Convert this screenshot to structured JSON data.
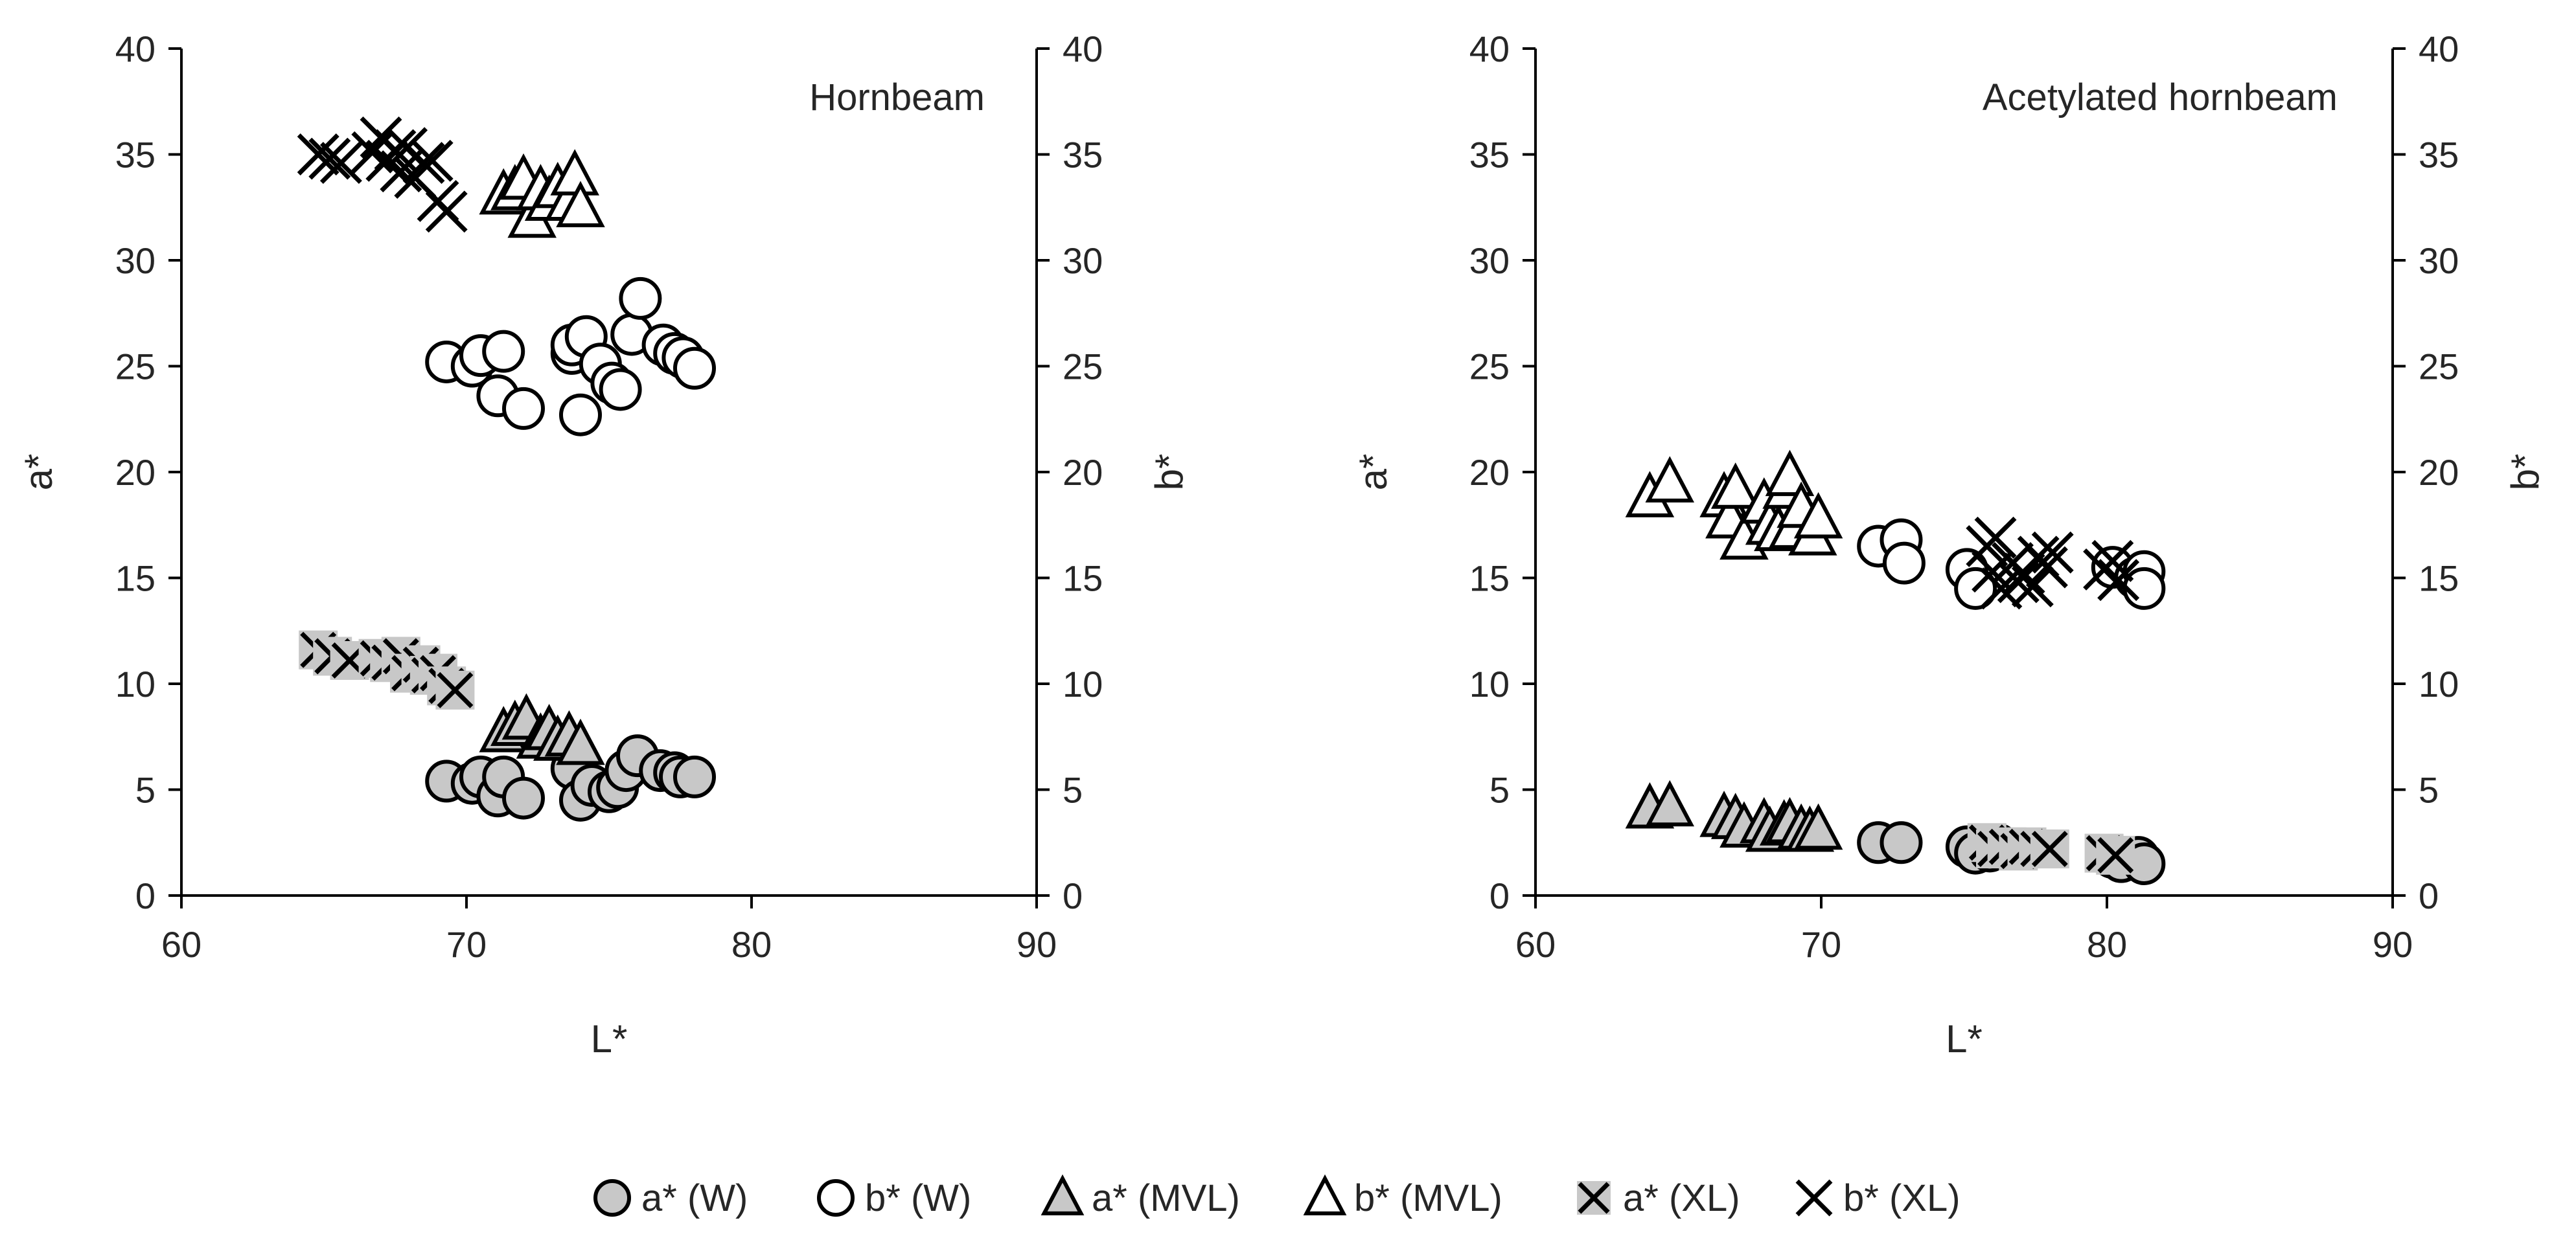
{
  "chart_data": [
    {
      "type": "scatter",
      "title": "Hornbeam",
      "xlabel": "L*",
      "ylabel": "a*",
      "y2label": "b*",
      "xlim": [
        60,
        90
      ],
      "ylim": [
        0,
        40
      ],
      "y2lim": [
        0,
        40
      ],
      "xticks": [
        "60",
        "70",
        "80",
        "90"
      ],
      "yticks": [
        "0",
        "5",
        "10",
        "15",
        "20",
        "25",
        "30",
        "35",
        "40"
      ],
      "y2ticks": [
        "0",
        "5",
        "10",
        "15",
        "20",
        "25",
        "30",
        "35",
        "40"
      ],
      "grid": false,
      "series": [
        {
          "name": "a* (W)",
          "marker": "circle",
          "fill": "#c8c8c8",
          "points": [
            [
              69.3,
              5.4
            ],
            [
              70.2,
              5.3
            ],
            [
              70.5,
              5.6
            ],
            [
              71.1,
              4.7
            ],
            [
              71.3,
              5.6
            ],
            [
              72.0,
              4.6
            ],
            [
              73.7,
              6.0
            ],
            [
              74.0,
              4.5
            ],
            [
              74.4,
              5.2
            ],
            [
              75.0,
              4.9
            ],
            [
              75.3,
              5.1
            ],
            [
              75.6,
              5.9
            ],
            [
              76.0,
              6.6
            ],
            [
              76.8,
              5.9
            ],
            [
              77.3,
              5.8
            ],
            [
              77.5,
              5.6
            ],
            [
              78.0,
              5.6
            ]
          ]
        },
        {
          "name": "b* (W)",
          "marker": "circle",
          "fill": "#ffffff",
          "points": [
            [
              69.3,
              25.2
            ],
            [
              70.2,
              25.0
            ],
            [
              70.5,
              25.5
            ],
            [
              71.1,
              23.6
            ],
            [
              71.3,
              25.7
            ],
            [
              72.0,
              23.0
            ],
            [
              73.7,
              25.6
            ],
            [
              73.7,
              26.0
            ],
            [
              74.0,
              22.7
            ],
            [
              74.2,
              26.4
            ],
            [
              74.7,
              25.1
            ],
            [
              75.1,
              24.2
            ],
            [
              75.4,
              23.9
            ],
            [
              75.8,
              26.5
            ],
            [
              76.1,
              28.2
            ],
            [
              76.9,
              26.0
            ],
            [
              77.3,
              25.6
            ],
            [
              77.6,
              25.4
            ],
            [
              78.0,
              24.9
            ]
          ]
        },
        {
          "name": "a* (MVL)",
          "marker": "triangle",
          "fill": "#c8c8c8",
          "points": [
            [
              71.3,
              7.7
            ],
            [
              71.7,
              8.0
            ],
            [
              72.1,
              8.3
            ],
            [
              72.6,
              7.4
            ],
            [
              72.9,
              7.8
            ],
            [
              73.2,
              7.3
            ],
            [
              73.6,
              7.5
            ],
            [
              74.0,
              7.1
            ]
          ]
        },
        {
          "name": "b* (MVL)",
          "marker": "triangle",
          "fill": "#ffffff",
          "points": [
            [
              71.3,
              33.1
            ],
            [
              71.7,
              33.3
            ],
            [
              72.0,
              33.8
            ],
            [
              72.3,
              32.0
            ],
            [
              72.6,
              33.3
            ],
            [
              72.9,
              32.8
            ],
            [
              73.2,
              33.4
            ],
            [
              73.6,
              32.8
            ],
            [
              73.8,
              34.0
            ],
            [
              74.0,
              32.5
            ]
          ]
        },
        {
          "name": "a* (XL)",
          "marker": "xbox",
          "fill": "#c8c8c8",
          "points": [
            [
              64.8,
              11.6
            ],
            [
              65.3,
              11.3
            ],
            [
              65.9,
              11.1
            ],
            [
              66.9,
              11.2
            ],
            [
              67.3,
              11.0
            ],
            [
              67.7,
              11.3
            ],
            [
              68.0,
              10.5
            ],
            [
              68.4,
              10.9
            ],
            [
              68.7,
              10.4
            ],
            [
              69.0,
              10.5
            ],
            [
              69.3,
              9.9
            ],
            [
              69.6,
              9.7
            ]
          ]
        },
        {
          "name": "b* (XL)",
          "marker": "x",
          "fill": "#000000",
          "points": [
            [
              64.8,
              35.0
            ],
            [
              65.2,
              34.8
            ],
            [
              65.6,
              34.6
            ],
            [
              66.7,
              35.1
            ],
            [
              67.0,
              35.8
            ],
            [
              67.2,
              34.7
            ],
            [
              67.5,
              35.2
            ],
            [
              67.7,
              34.2
            ],
            [
              67.9,
              35.3
            ],
            [
              68.2,
              33.9
            ],
            [
              68.5,
              34.6
            ],
            [
              68.8,
              34.7
            ],
            [
              69.0,
              32.8
            ],
            [
              69.3,
              32.3
            ]
          ]
        }
      ]
    },
    {
      "type": "scatter",
      "title": "Acetylated hornbeam",
      "xlabel": "L*",
      "ylabel": "a*",
      "y2label": "b*",
      "xlim": [
        60,
        90
      ],
      "ylim": [
        0,
        40
      ],
      "y2lim": [
        0,
        40
      ],
      "xticks": [
        "60",
        "70",
        "80",
        "90"
      ],
      "yticks": [
        "0",
        "5",
        "10",
        "15",
        "20",
        "25",
        "30",
        "35",
        "40"
      ],
      "y2ticks": [
        "0",
        "5",
        "10",
        "15",
        "20",
        "25",
        "30",
        "35",
        "40"
      ],
      "grid": false,
      "series": [
        {
          "name": "a* (W)",
          "marker": "circle",
          "fill": "#c8c8c8",
          "points": [
            [
              72.0,
              2.5
            ],
            [
              72.8,
              2.5
            ],
            [
              75.1,
              2.3
            ],
            [
              75.4,
              2.0
            ],
            [
              75.9,
              2.1
            ],
            [
              76.2,
              2.4
            ],
            [
              80.2,
              1.8
            ],
            [
              80.5,
              1.6
            ],
            [
              81.1,
              1.8
            ],
            [
              81.3,
              1.5
            ]
          ]
        },
        {
          "name": "b* (W)",
          "marker": "circle",
          "fill": "#ffffff",
          "points": [
            [
              72.0,
              16.5
            ],
            [
              72.8,
              16.8
            ],
            [
              72.9,
              15.7
            ],
            [
              75.1,
              15.4
            ],
            [
              75.4,
              14.5
            ],
            [
              80.2,
              15.5
            ],
            [
              81.0,
              15.0
            ],
            [
              81.3,
              15.3
            ],
            [
              81.3,
              14.5
            ]
          ]
        },
        {
          "name": "a* (MVL)",
          "marker": "triangle",
          "fill": "#c8c8c8",
          "points": [
            [
              64.0,
              4.1
            ],
            [
              64.7,
              4.2
            ],
            [
              66.6,
              3.7
            ],
            [
              67.0,
              3.6
            ],
            [
              67.3,
              3.2
            ],
            [
              68.0,
              3.4
            ],
            [
              68.2,
              3.0
            ],
            [
              68.7,
              3.3
            ],
            [
              68.9,
              3.4
            ],
            [
              69.3,
              3.1
            ],
            [
              69.6,
              3.0
            ],
            [
              69.9,
              3.1
            ]
          ]
        },
        {
          "name": "b* (MVL)",
          "marker": "triangle",
          "fill": "#ffffff",
          "points": [
            [
              64.0,
              18.8
            ],
            [
              64.7,
              19.5
            ],
            [
              66.6,
              18.8
            ],
            [
              66.8,
              17.8
            ],
            [
              67.0,
              19.2
            ],
            [
              67.3,
              16.8
            ],
            [
              68.0,
              18.5
            ],
            [
              68.2,
              17.5
            ],
            [
              68.5,
              17.2
            ],
            [
              68.8,
              19.2
            ],
            [
              68.9,
              19.8
            ],
            [
              69.0,
              17.3
            ],
            [
              69.3,
              18.3
            ],
            [
              69.7,
              17.0
            ],
            [
              69.9,
              17.8
            ]
          ]
        },
        {
          "name": "a* (XL)",
          "marker": "xbox",
          "fill": "#c8c8c8",
          "points": [
            [
              75.8,
              2.5
            ],
            [
              76.1,
              2.2
            ],
            [
              76.5,
              2.3
            ],
            [
              76.9,
              2.1
            ],
            [
              77.2,
              2.3
            ],
            [
              77.6,
              2.2
            ],
            [
              78.0,
              2.2
            ],
            [
              79.9,
              2.0
            ],
            [
              80.3,
              1.9
            ]
          ]
        },
        {
          "name": "b* (XL)",
          "marker": "x",
          "fill": "#000000",
          "points": [
            [
              75.8,
              16.5
            ],
            [
              76.1,
              16.9
            ],
            [
              76.0,
              15.3
            ],
            [
              76.3,
              14.5
            ],
            [
              76.7,
              15.7
            ],
            [
              76.9,
              14.8
            ],
            [
              77.1,
              15.2
            ],
            [
              77.4,
              14.6
            ],
            [
              77.6,
              16.0
            ],
            [
              77.9,
              15.5
            ],
            [
              78.1,
              16.2
            ],
            [
              79.9,
              15.4
            ],
            [
              80.2,
              15.8
            ],
            [
              80.4,
              14.9
            ]
          ]
        }
      ]
    }
  ],
  "legend": {
    "items": [
      {
        "label": "a* (W)",
        "marker": "circle",
        "fill": "#c8c8c8"
      },
      {
        "label": "b* (W)",
        "marker": "circle",
        "fill": "#ffffff"
      },
      {
        "label": "a* (MVL)",
        "marker": "triangle",
        "fill": "#c8c8c8"
      },
      {
        "label": "b* (MVL)",
        "marker": "triangle",
        "fill": "#ffffff"
      },
      {
        "label": "a* (XL)",
        "marker": "xbox",
        "fill": "#c8c8c8"
      },
      {
        "label": "b* (XL)",
        "marker": "x",
        "fill": "#000000"
      }
    ],
    "position": "bottom"
  },
  "colors": {
    "axis": "#000000",
    "marker_stroke": "#000000",
    "grey_fill": "#c8c8c8",
    "text": "#262626"
  }
}
